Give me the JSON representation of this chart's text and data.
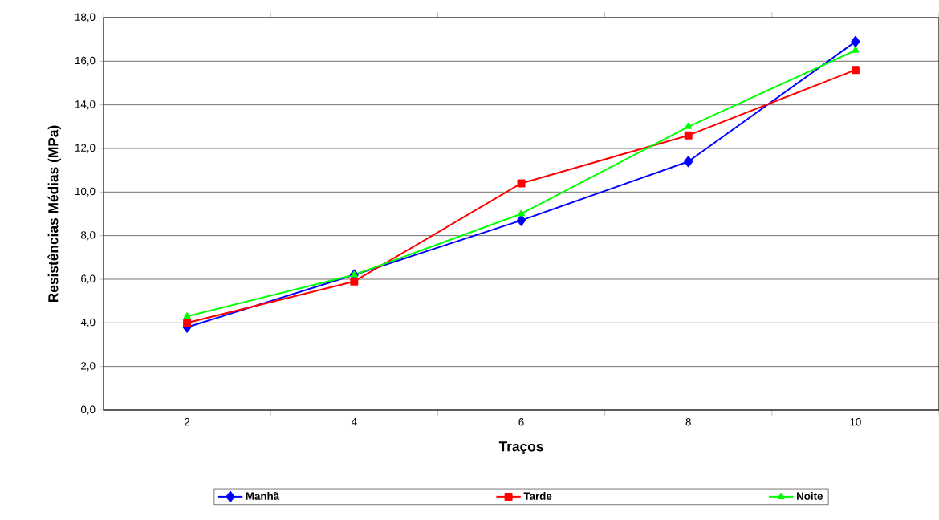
{
  "chart_data": {
    "type": "line",
    "xlabel": "Traços",
    "ylabel": "Resistências Médias (MPa)",
    "categories": [
      "2",
      "4",
      "6",
      "8",
      "10"
    ],
    "series": [
      {
        "name": "Manhã",
        "color": "#0000ff",
        "marker": "diamond",
        "values": [
          3.8,
          6.2,
          8.7,
          11.4,
          16.9
        ]
      },
      {
        "name": "Tarde",
        "color": "#ff0000",
        "marker": "square",
        "values": [
          4.0,
          5.9,
          10.4,
          12.6,
          15.6
        ]
      },
      {
        "name": "Noite",
        "color": "#00ff00",
        "marker": "triangle",
        "values": [
          4.3,
          6.2,
          9.0,
          13.0,
          16.5
        ]
      }
    ],
    "ylim": [
      0,
      18
    ],
    "yticks": [
      {
        "value": 0,
        "label": "0,0"
      },
      {
        "value": 2,
        "label": "2,0"
      },
      {
        "value": 4,
        "label": "4,0"
      },
      {
        "value": 6,
        "label": "6,0"
      },
      {
        "value": 8,
        "label": "8,0"
      },
      {
        "value": 10,
        "label": "10,0"
      },
      {
        "value": 12,
        "label": "12,0"
      },
      {
        "value": 14,
        "label": "14,0"
      },
      {
        "value": 16,
        "label": "16,0"
      },
      {
        "value": 18,
        "label": "18,0"
      }
    ],
    "grid": "y",
    "legend": "bottom",
    "line_style": "solid"
  }
}
